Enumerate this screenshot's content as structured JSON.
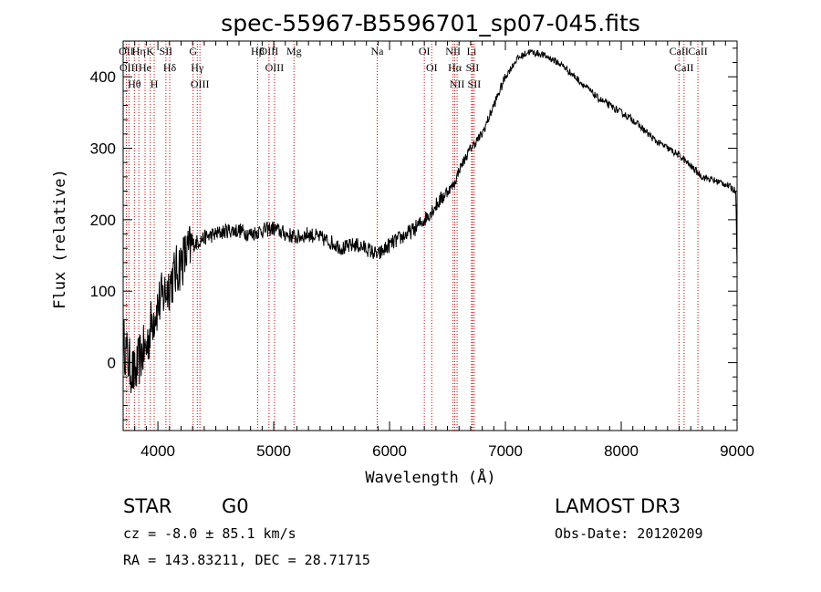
{
  "chart_data": {
    "type": "line",
    "title": "spec-55967-B5596701_sp07-045.fits",
    "xlabel": "Wavelength (Å)",
    "ylabel": "Flux (relative)",
    "xlim": [
      3700,
      9000
    ],
    "ylim": [
      -95,
      450
    ],
    "xticks": [
      4000,
      5000,
      6000,
      7000,
      8000,
      9000
    ],
    "yticks": [
      0,
      100,
      200,
      300,
      400
    ],
    "spectrum_anchors": {
      "x": [
        3700,
        3750,
        3800,
        3850,
        3900,
        3950,
        4000,
        4050,
        4100,
        4150,
        4200,
        4300,
        4400,
        4500,
        4600,
        4700,
        4800,
        4900,
        5000,
        5100,
        5200,
        5300,
        5400,
        5500,
        5600,
        5700,
        5800,
        5900,
        6000,
        6100,
        6200,
        6300,
        6400,
        6500,
        6560,
        6600,
        6700,
        6800,
        6900,
        7000,
        7100,
        7200,
        7300,
        7400,
        7500,
        7600,
        7700,
        7800,
        7900,
        8000,
        8100,
        8200,
        8300,
        8400,
        8500,
        8600,
        8700,
        8800,
        8900,
        8990,
        9000
      ],
      "y": [
        30,
        0,
        -20,
        10,
        20,
        60,
        80,
        95,
        110,
        125,
        140,
        165,
        175,
        180,
        185,
        185,
        180,
        185,
        188,
        180,
        175,
        180,
        175,
        168,
        160,
        165,
        160,
        150,
        165,
        175,
        185,
        200,
        220,
        240,
        250,
        270,
        300,
        320,
        360,
        400,
        425,
        435,
        432,
        425,
        415,
        400,
        385,
        370,
        360,
        350,
        340,
        325,
        310,
        300,
        290,
        275,
        260,
        255,
        250,
        240,
        130
      ]
    },
    "spectral_lines": [
      {
        "label": "Hθ",
        "wavelength": 3797
      },
      {
        "label": "OII",
        "wavelength": 3727
      },
      {
        "label": "OIII",
        "wavelength": 3750
      },
      {
        "label": "K",
        "wavelength": 3934
      },
      {
        "label": "He",
        "wavelength": 3889
      },
      {
        "label": "Hη",
        "wavelength": 3835
      },
      {
        "label": "SII",
        "wavelength": 4069
      },
      {
        "label": "H",
        "wavelength": 3968
      },
      {
        "label": "Hδ",
        "wavelength": 4102
      },
      {
        "label": "OIII",
        "wavelength": 4363
      },
      {
        "label": "Hγ",
        "wavelength": 4340
      },
      {
        "label": "G",
        "wavelength": 4304
      },
      {
        "label": "Hβ",
        "wavelength": 4861
      },
      {
        "label": "OIII",
        "wavelength": 5007
      },
      {
        "label": "OIII",
        "wavelength": 4959
      },
      {
        "label": "Mg",
        "wavelength": 5175
      },
      {
        "label": "Na",
        "wavelength": 5893
      },
      {
        "label": "OI",
        "wavelength": 6300
      },
      {
        "label": "OI",
        "wavelength": 6364
      },
      {
        "label": "Hα",
        "wavelength": 6563
      },
      {
        "label": "NII",
        "wavelength": 6548
      },
      {
        "label": "NII",
        "wavelength": 6583
      },
      {
        "label": "SII",
        "wavelength": 6716
      },
      {
        "label": "Li",
        "wavelength": 6708
      },
      {
        "label": "SII",
        "wavelength": 6731
      },
      {
        "label": "CaII",
        "wavelength": 8542
      },
      {
        "label": "CaII",
        "wavelength": 8498
      },
      {
        "label": "CaII",
        "wavelength": 8662
      }
    ]
  },
  "info": {
    "object_class": "STAR",
    "subclass": "G0",
    "survey": "LAMOST DR3",
    "redshift_line": "cz = -8.0 ± 85.1 km/s",
    "obs_date_line": "Obs-Date: 20120209",
    "coords_line": "RA = 143.83211, DEC =  28.71715"
  },
  "colors": {
    "spectrum": "#000000",
    "line_markers": "#cc0000",
    "axes": "#000000"
  }
}
